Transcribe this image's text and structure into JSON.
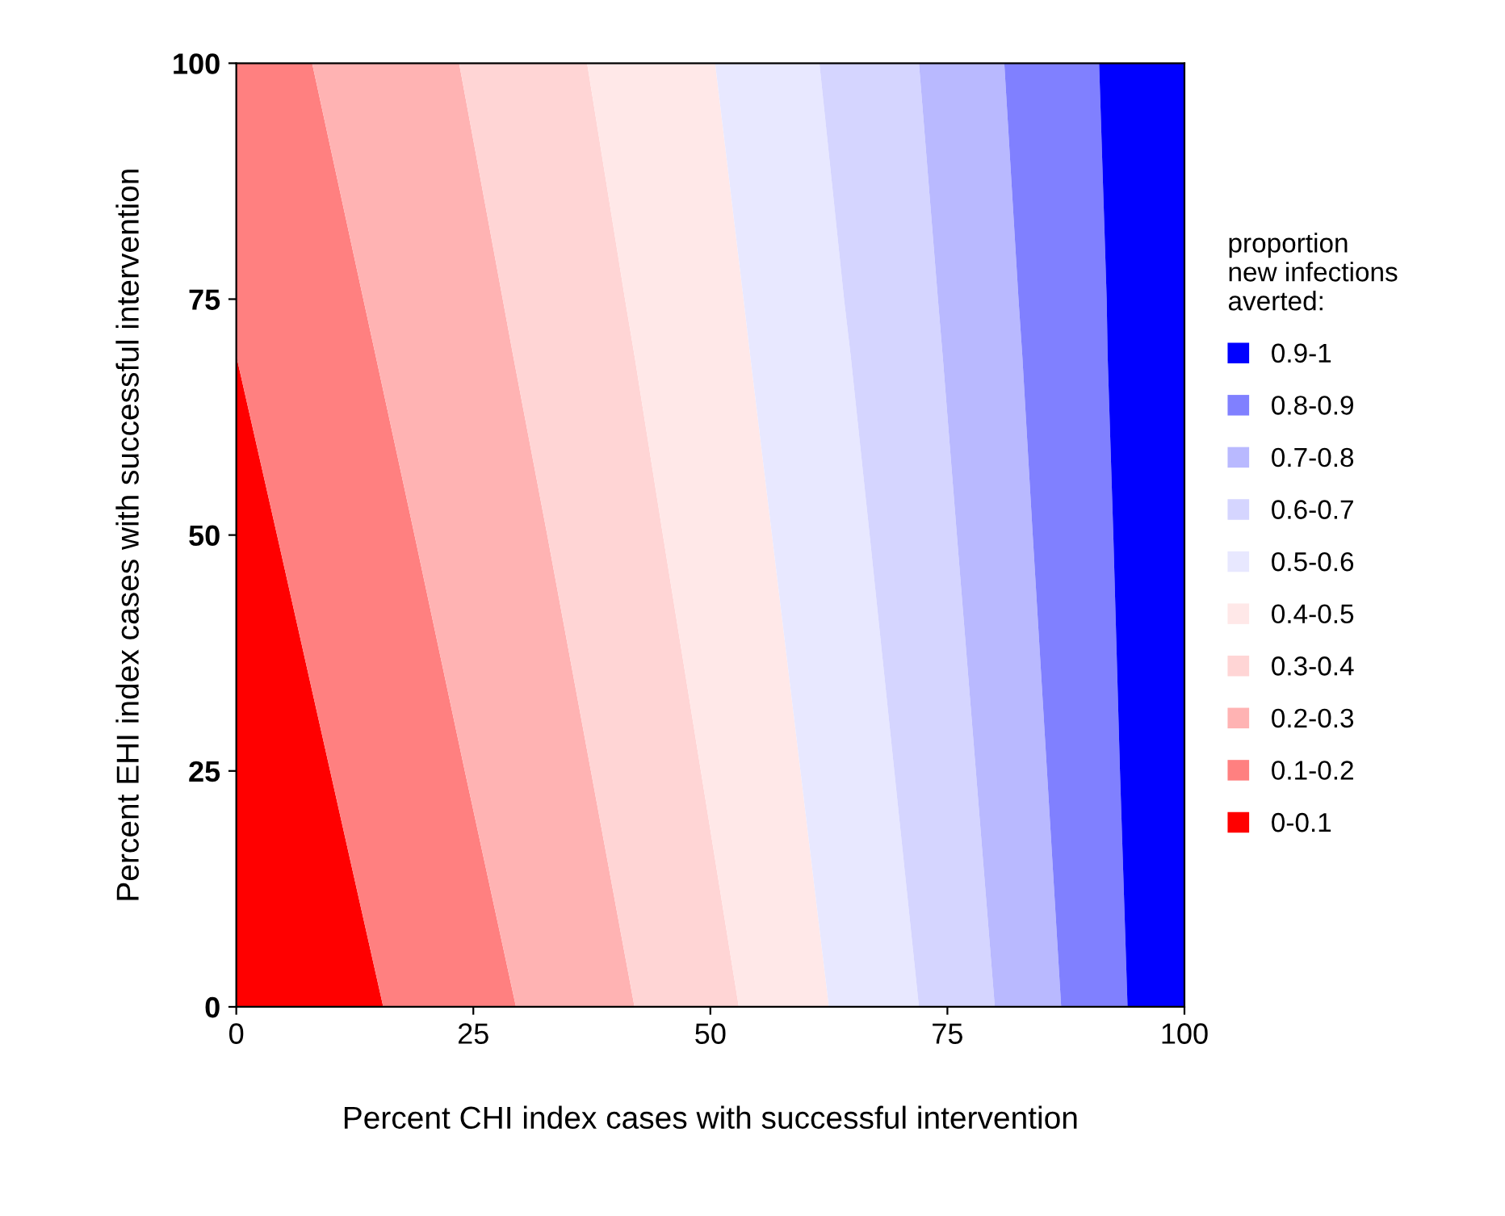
{
  "chart_data": {
    "type": "area",
    "stacked": true,
    "orientation": "horizontal",
    "xlabel": "Percent CHI index cases with successful intervention",
    "ylabel": "Percent EHI index cases with successful intervention",
    "legend_title": "proportion\nnew infections\naverted:",
    "legend": "right",
    "grid": false,
    "x": [
      0,
      25,
      50,
      69,
      75,
      100
    ],
    "xlim": [
      0,
      100
    ],
    "xticks": [
      0,
      25,
      50,
      75,
      100
    ],
    "ylim": [
      0,
      100
    ],
    "yticks": [
      0,
      25,
      50,
      75,
      100
    ],
    "series": [
      {
        "name": "0-0.1",
        "color": "#ff0000",
        "values": [
          15.5,
          9.9,
          4.3,
          0,
          0,
          0
        ]
      },
      {
        "name": "0.1-0.2",
        "color": "#ff8080",
        "values": [
          14.0,
          14.2,
          14.5,
          14.7,
          13.4,
          8.0
        ]
      },
      {
        "name": "0.2-0.3",
        "color": "#ffb3b3",
        "values": [
          12.5,
          13.3,
          14.0,
          14.5,
          14.7,
          15.5
        ]
      },
      {
        "name": "0.3-0.4",
        "color": "#ffd5d5",
        "values": [
          11.0,
          11.6,
          12.2,
          12.8,
          12.9,
          13.5
        ]
      },
      {
        "name": "0.4-0.5",
        "color": "#ffe8e8",
        "values": [
          9.5,
          10.5,
          11.5,
          12.2,
          12.5,
          13.5
        ]
      },
      {
        "name": "0.5-0.6",
        "color": "#e8e8ff",
        "values": [
          9.5,
          9.9,
          10.3,
          10.6,
          10.6,
          11.0
        ]
      },
      {
        "name": "0.6-0.7",
        "color": "#d5d5ff",
        "values": [
          8.0,
          8.6,
          9.2,
          9.7,
          9.9,
          10.5
        ]
      },
      {
        "name": "0.7-0.8",
        "color": "#b9b9ff",
        "values": [
          7.0,
          7.5,
          8.0,
          8.4,
          8.5,
          9.0
        ]
      },
      {
        "name": "0.8-0.9",
        "color": "#8080ff",
        "values": [
          7.0,
          7.7,
          8.5,
          9.0,
          9.3,
          10.0
        ]
      },
      {
        "name": "0.9-1",
        "color": "#0000ff",
        "values": [
          6.0,
          6.8,
          7.5,
          8.1,
          8.2,
          9.0
        ]
      }
    ]
  }
}
